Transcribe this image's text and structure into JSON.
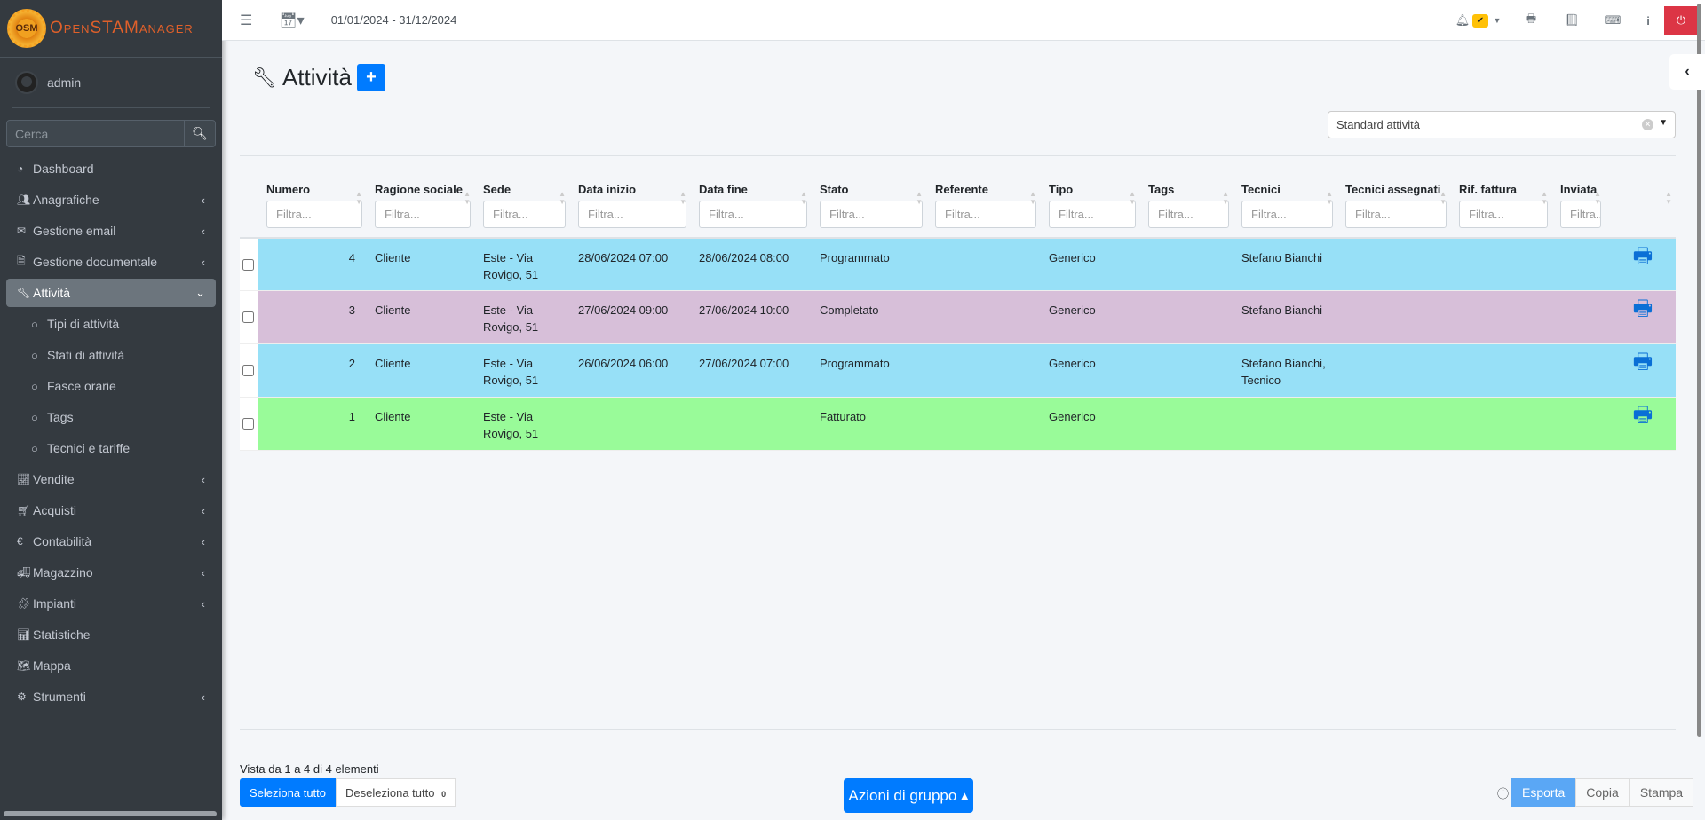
{
  "app": {
    "logo_text": "OpenSTAManager",
    "logo_badge": "OSM"
  },
  "user": {
    "name": "admin"
  },
  "search": {
    "placeholder": "Cerca"
  },
  "sidebar": {
    "items": [
      {
        "label": "Dashboard",
        "icon": "dashboard-icon",
        "glyph": "◔"
      },
      {
        "label": "Anagrafiche",
        "icon": "users-icon",
        "glyph": "👥",
        "chevron": "‹"
      },
      {
        "label": "Gestione email",
        "icon": "envelope-icon",
        "glyph": "✉",
        "chevron": "‹"
      },
      {
        "label": "Gestione documentale",
        "icon": "file-icon",
        "glyph": "🗎",
        "chevron": "‹"
      },
      {
        "label": "Attività",
        "icon": "wrench-icon",
        "glyph": "🔧",
        "chevron": "⌄",
        "active": true
      },
      {
        "label": "Tipi di attività",
        "icon": "circle-icon",
        "glyph": "○",
        "sub": true
      },
      {
        "label": "Stati di attività",
        "icon": "circle-icon",
        "glyph": "○",
        "sub": true
      },
      {
        "label": "Fasce orarie",
        "icon": "circle-icon",
        "glyph": "○",
        "sub": true
      },
      {
        "label": "Tags",
        "icon": "circle-icon",
        "glyph": "○",
        "sub": true
      },
      {
        "label": "Tecnici e tariffe",
        "icon": "circle-icon",
        "glyph": "○",
        "sub": true
      },
      {
        "label": "Vendite",
        "icon": "chart-line-icon",
        "glyph": "📈",
        "chevron": "‹"
      },
      {
        "label": "Acquisti",
        "icon": "cart-icon",
        "glyph": "🛒",
        "chevron": "‹"
      },
      {
        "label": "Contabilità",
        "icon": "euro-icon",
        "glyph": "€",
        "chevron": "‹"
      },
      {
        "label": "Magazzino",
        "icon": "truck-icon",
        "glyph": "🚚",
        "chevron": "‹"
      },
      {
        "label": "Impianti",
        "icon": "puzzle-icon",
        "glyph": "🧩",
        "chevron": "‹"
      },
      {
        "label": "Statistiche",
        "icon": "bar-chart-icon",
        "glyph": "📊"
      },
      {
        "label": "Mappa",
        "icon": "map-icon",
        "glyph": "🗺"
      },
      {
        "label": "Strumenti",
        "icon": "cog-icon",
        "glyph": "⚙",
        "chevron": "‹"
      }
    ]
  },
  "header": {
    "date_range": "01/01/2024 - 31/12/2024"
  },
  "page": {
    "title": "Attività",
    "add_label": "+",
    "segment_select": "Standard attività"
  },
  "table": {
    "filter_placeholder": "Filtra...",
    "columns": [
      "Numero",
      "Ragione sociale",
      "Sede",
      "Data inizio",
      "Data fine",
      "Stato",
      "Referente",
      "Tipo",
      "Tags",
      "Tecnici",
      "Tecnici assegnati",
      "Rif. fattura",
      "Inviata",
      ""
    ],
    "rows": [
      {
        "color": "#97e0f7",
        "cells": [
          "4",
          "Cliente",
          "Este - Via Rovigo, 51",
          "28/06/2024 07:00",
          "28/06/2024 08:00",
          "Programmato",
          "",
          "Generico",
          "",
          "Stefano Bianchi",
          "",
          "",
          ""
        ]
      },
      {
        "color": "#d7bfd9",
        "cells": [
          "3",
          "Cliente",
          "Este - Via Rovigo, 51",
          "27/06/2024 09:00",
          "27/06/2024 10:00",
          "Completato",
          "",
          "Generico",
          "",
          "Stefano Bianchi",
          "",
          "",
          ""
        ]
      },
      {
        "color": "#97e0f7",
        "cells": [
          "2",
          "Cliente",
          "Este - Via Rovigo, 51",
          "26/06/2024 06:00",
          "27/06/2024 07:00",
          "Programmato",
          "",
          "Generico",
          "",
          "Stefano Bianchi, Tecnico",
          "",
          "",
          ""
        ]
      },
      {
        "color": "#99fb99",
        "cells": [
          "1",
          "Cliente",
          "Este - Via Rovigo, 51",
          "",
          "",
          "Fatturato",
          "",
          "Generico",
          "",
          "",
          "",
          "",
          ""
        ]
      }
    ]
  },
  "footer": {
    "info": "Vista da 1 a 4 di 4 elementi",
    "select_all": "Seleziona tutto",
    "deselect_all": "Deseleziona tutto",
    "selected_count": "0",
    "group_actions": "Azioni di gruppo ▴",
    "export": "Esporta",
    "copy": "Copia",
    "print": "Stampa"
  }
}
